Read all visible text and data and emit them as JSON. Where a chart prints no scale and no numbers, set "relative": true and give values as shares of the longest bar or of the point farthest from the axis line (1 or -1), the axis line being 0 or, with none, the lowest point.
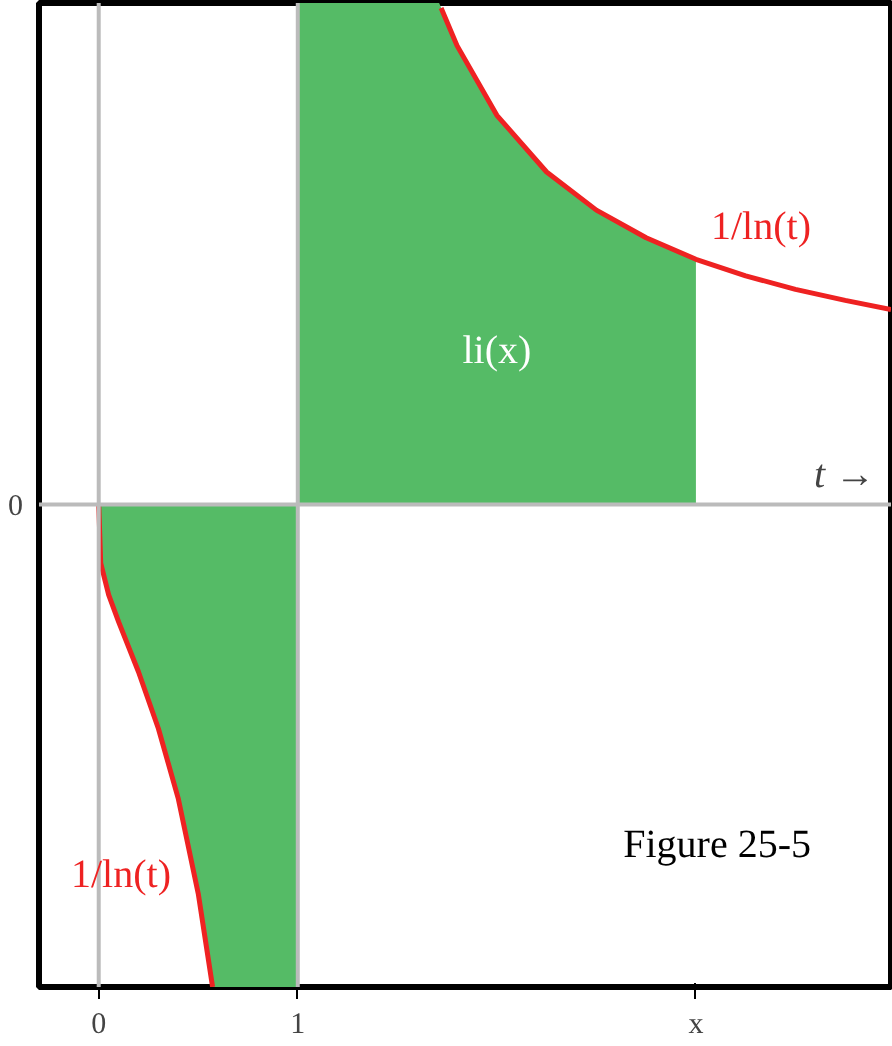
{
  "chart_data": {
    "type": "line",
    "relative": true,
    "xlabel": "t →",
    "xlim": [
      -0.3,
      3.98
    ],
    "xticks": [
      0,
      1,
      {
        "value": 3,
        "label": "x"
      }
    ],
    "series": [
      {
        "type": "area",
        "color": "#55bb66",
        "x": [
          0,
          0.01,
          0.05,
          0.1,
          0.2,
          0.3,
          0.4,
          0.5,
          0.572,
          1
        ],
        "values": [
          0,
          -0.117,
          -0.18,
          -0.234,
          -0.334,
          -0.447,
          -0.587,
          -0.776,
          -0.962,
          -0.962
        ]
      },
      {
        "type": "area",
        "color": "#55bb66",
        "x": [
          1,
          1.71,
          1.8,
          2,
          2.25,
          2.5,
          2.75,
          3
        ],
        "values": [
          1,
          1,
          0.915,
          0.776,
          0.663,
          0.587,
          0.532,
          0.489
        ]
      },
      {
        "name": "1/ln(t)",
        "color": "#ee2222",
        "x": [
          0,
          0.01,
          0.05,
          0.1,
          0.2,
          0.3,
          0.4,
          0.5,
          0.572,
          1,
          1.72,
          1.8,
          2,
          2.25,
          2.5,
          2.75,
          3,
          3.25,
          3.5,
          3.75,
          3.98
        ],
        "values": [
          0,
          -0.117,
          -0.18,
          -0.234,
          -0.334,
          -0.447,
          -0.587,
          -0.776,
          -0.962,
          null,
          0.99,
          0.915,
          0.776,
          0.663,
          0.587,
          0.532,
          0.489,
          0.456,
          0.429,
          0.407,
          0.389
        ]
      }
    ],
    "ref_lines": [
      {
        "axis": "y",
        "value": 0,
        "label": "0",
        "color": "#bbbbbb"
      },
      {
        "axis": "x",
        "value": 0,
        "color": "#bbbbbb"
      },
      {
        "axis": "x",
        "value": 1,
        "color": "#bbbbbb"
      }
    ],
    "annotations": [
      "li(x)",
      "1/ln(t)",
      "Figure 25-5"
    ],
    "line_style": "solid"
  }
}
